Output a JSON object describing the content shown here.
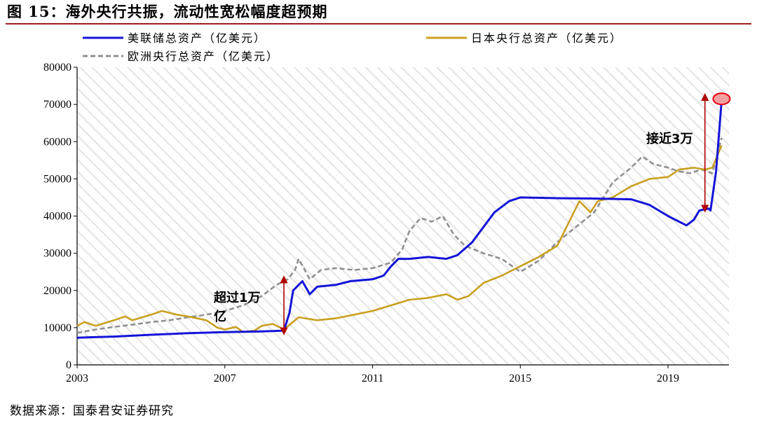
{
  "title": "图 15：海外央行共振，流动性宽松幅度超预期",
  "source": "数据来源：国泰君安证券研究",
  "colors": {
    "fed": "#1414d8",
    "boj": "#c9a020",
    "ecb": "#909090",
    "arrow": "#b00000",
    "circle": "#e8000d",
    "hatch": "#e4e4e4"
  },
  "chart_data": {
    "type": "line",
    "ylim": [
      0,
      80000
    ],
    "yticks": [
      0,
      10000,
      20000,
      30000,
      40000,
      50000,
      60000,
      70000,
      80000
    ],
    "xlim": [
      2003,
      2020.65
    ],
    "xticks": [
      2003,
      2007,
      2011,
      2015,
      2019
    ],
    "grid": false,
    "background": "diagonal-hatch",
    "legend_position": "top",
    "series": [
      {
        "name": "美联储总资产（亿美元）",
        "key": "fed",
        "style": "solid",
        "points": [
          [
            2003,
            7300
          ],
          [
            2004,
            7600
          ],
          [
            2005,
            8100
          ],
          [
            2006,
            8500
          ],
          [
            2007,
            8800
          ],
          [
            2008,
            9000
          ],
          [
            2008.6,
            9200
          ],
          [
            2008.75,
            14000
          ],
          [
            2008.85,
            20000
          ],
          [
            2009.1,
            22500
          ],
          [
            2009.3,
            19000
          ],
          [
            2009.5,
            21000
          ],
          [
            2010,
            21500
          ],
          [
            2010.4,
            22500
          ],
          [
            2011,
            23000
          ],
          [
            2011.3,
            24000
          ],
          [
            2011.5,
            26500
          ],
          [
            2011.7,
            28500
          ],
          [
            2012,
            28500
          ],
          [
            2012.5,
            29000
          ],
          [
            2013,
            28500
          ],
          [
            2013.3,
            29500
          ],
          [
            2013.7,
            33000
          ],
          [
            2014,
            37000
          ],
          [
            2014.3,
            41000
          ],
          [
            2014.7,
            44000
          ],
          [
            2015,
            45000
          ],
          [
            2016,
            44800
          ],
          [
            2017,
            44700
          ],
          [
            2018,
            44500
          ],
          [
            2018.5,
            43000
          ],
          [
            2019,
            40000
          ],
          [
            2019.3,
            38500
          ],
          [
            2019.5,
            37500
          ],
          [
            2019.7,
            39000
          ],
          [
            2019.85,
            41500
          ],
          [
            2020.1,
            42000
          ],
          [
            2020.15,
            41500
          ],
          [
            2020.3,
            52000
          ],
          [
            2020.45,
            71000
          ]
        ]
      },
      {
        "name": "日本央行总资产（亿美元）",
        "key": "boj",
        "style": "solid",
        "points": [
          [
            2003,
            10500
          ],
          [
            2003.2,
            11500
          ],
          [
            2003.5,
            10500
          ],
          [
            2004,
            12000
          ],
          [
            2004.3,
            13000
          ],
          [
            2004.5,
            12000
          ],
          [
            2005,
            13500
          ],
          [
            2005.3,
            14500
          ],
          [
            2005.7,
            13500
          ],
          [
            2006,
            13000
          ],
          [
            2006.5,
            12000
          ],
          [
            2006.8,
            10000
          ],
          [
            2007,
            9500
          ],
          [
            2007.3,
            10200
          ],
          [
            2007.5,
            8800
          ],
          [
            2007.8,
            9200
          ],
          [
            2008,
            10500
          ],
          [
            2008.3,
            11000
          ],
          [
            2008.6,
            9500
          ],
          [
            2009,
            12800
          ],
          [
            2009.5,
            12000
          ],
          [
            2010,
            12500
          ],
          [
            2010.5,
            13500
          ],
          [
            2011,
            14500
          ],
          [
            2011.5,
            16000
          ],
          [
            2012,
            17500
          ],
          [
            2012.5,
            18000
          ],
          [
            2013,
            19000
          ],
          [
            2013.3,
            17500
          ],
          [
            2013.6,
            18500
          ],
          [
            2014,
            22000
          ],
          [
            2014.5,
            24000
          ],
          [
            2015,
            26500
          ],
          [
            2015.5,
            29000
          ],
          [
            2016,
            32000
          ],
          [
            2016.3,
            38000
          ],
          [
            2016.6,
            44000
          ],
          [
            2016.9,
            41000
          ],
          [
            2017.1,
            44000
          ],
          [
            2017.5,
            45000
          ],
          [
            2018,
            48000
          ],
          [
            2018.5,
            50000
          ],
          [
            2019,
            50500
          ],
          [
            2019.3,
            52500
          ],
          [
            2019.7,
            53000
          ],
          [
            2020,
            52500
          ],
          [
            2020.2,
            53000
          ],
          [
            2020.45,
            59000
          ]
        ]
      },
      {
        "name": "欧洲央行总资产（亿美元）",
        "key": "ecb",
        "style": "dashed",
        "points": [
          [
            2003,
            8600
          ],
          [
            2003.5,
            9500
          ],
          [
            2004,
            10200
          ],
          [
            2004.5,
            10800
          ],
          [
            2005,
            11500
          ],
          [
            2005.5,
            12000
          ],
          [
            2006,
            12800
          ],
          [
            2006.5,
            13500
          ],
          [
            2007,
            14500
          ],
          [
            2007.5,
            16000
          ],
          [
            2008,
            18500
          ],
          [
            2008.4,
            21500
          ],
          [
            2008.7,
            23000
          ],
          [
            2008.9,
            25500
          ],
          [
            2009,
            28500
          ],
          [
            2009.3,
            23000
          ],
          [
            2009.6,
            25500
          ],
          [
            2010,
            26000
          ],
          [
            2010.5,
            25500
          ],
          [
            2011,
            26000
          ],
          [
            2011.5,
            27500
          ],
          [
            2011.8,
            31000
          ],
          [
            2012,
            36000
          ],
          [
            2012.3,
            39500
          ],
          [
            2012.6,
            38500
          ],
          [
            2012.9,
            40000
          ],
          [
            2013.2,
            35000
          ],
          [
            2013.5,
            32000
          ],
          [
            2014,
            30000
          ],
          [
            2014.5,
            28500
          ],
          [
            2015,
            25000
          ],
          [
            2015.5,
            28000
          ],
          [
            2016,
            33000
          ],
          [
            2016.5,
            37000
          ],
          [
            2017,
            41000
          ],
          [
            2017.5,
            49000
          ],
          [
            2018,
            53000
          ],
          [
            2018.3,
            56000
          ],
          [
            2018.6,
            54000
          ],
          [
            2019,
            53000
          ],
          [
            2019.3,
            52000
          ],
          [
            2019.6,
            51500
          ],
          [
            2019.9,
            52500
          ],
          [
            2020.2,
            51500
          ],
          [
            2020.45,
            61000
          ]
        ]
      }
    ],
    "annotations": [
      {
        "text": "超过1万",
        "text2": "亿",
        "arrow_x": 2008.6,
        "arrow_y": [
          9000,
          23000
        ]
      },
      {
        "text": "接近3万",
        "arrow_x": 2020.0,
        "arrow_y": [
          42000,
          72000
        ]
      }
    ],
    "highlight_point": [
      2020.45,
      71500
    ]
  }
}
